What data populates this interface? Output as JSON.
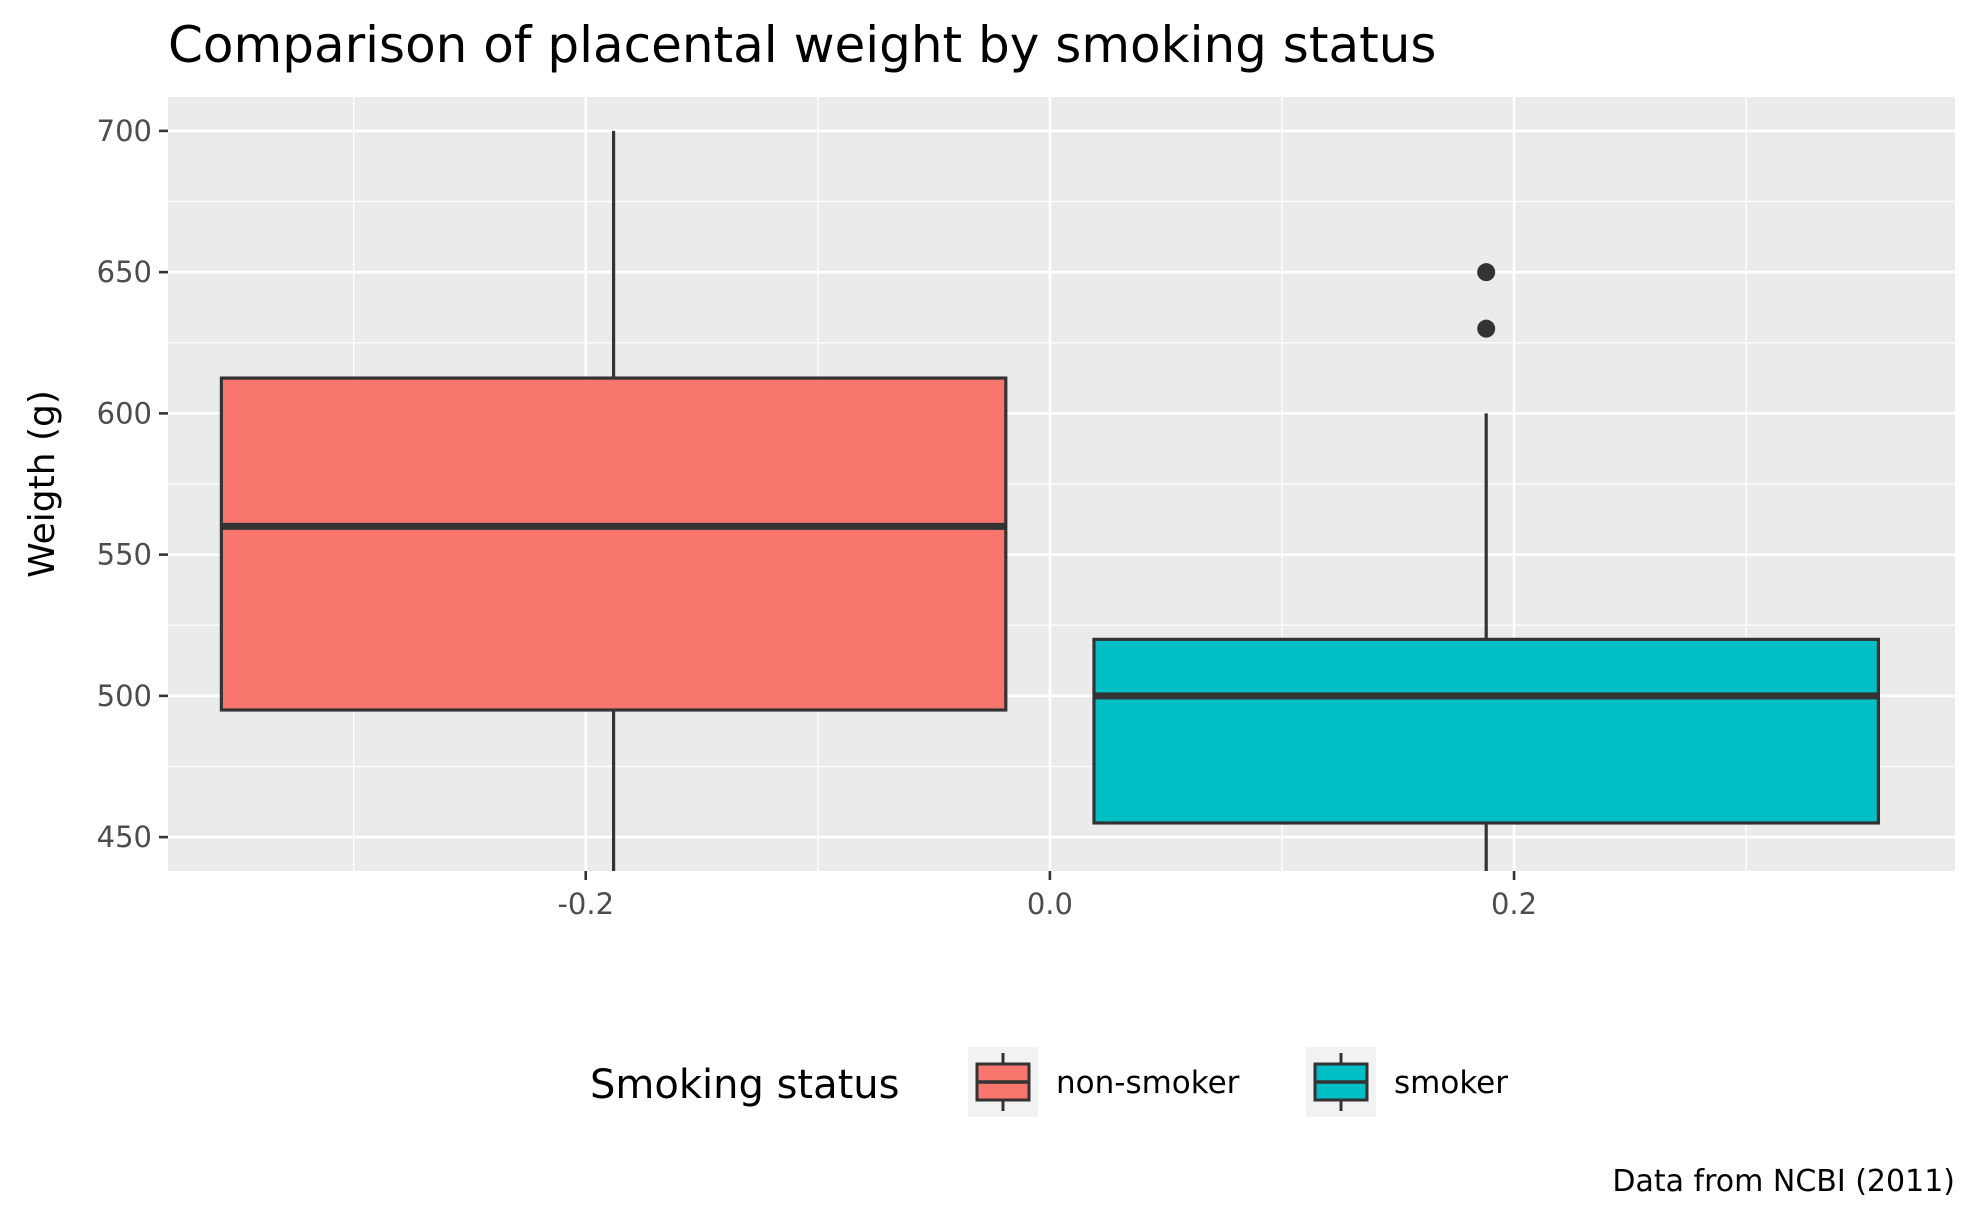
{
  "chart_data": {
    "type": "boxplot",
    "title": "Comparison of placental weight by smoking status",
    "xlabel": "",
    "ylabel": "Weigth (g)",
    "caption": "Data from NCBI (2011)",
    "xlim": [
      -0.38,
      0.39
    ],
    "ylim": [
      438,
      712
    ],
    "x_ticks": [
      -0.2,
      0.0,
      0.2
    ],
    "x_tick_labels": [
      "-0.2",
      "0.0",
      "0.2"
    ],
    "y_ticks": [
      450,
      500,
      550,
      600,
      650,
      700
    ],
    "y_tick_labels": [
      "450",
      "500",
      "550",
      "600",
      "650",
      "700"
    ],
    "grid": true,
    "legend": {
      "title": "Smoking status",
      "position": "bottom"
    },
    "series": [
      {
        "name": "non-smoker",
        "color": "#F8766D",
        "x_center": -0.188,
        "box_x_range": [
          -0.357,
          -0.019
        ],
        "whisker_low": 438,
        "q1": 495,
        "median": 560,
        "q3": 612.5,
        "whisker_high": 700,
        "outliers": []
      },
      {
        "name": "smoker",
        "color": "#00BFC4",
        "x_center": 0.188,
        "box_x_range": [
          0.019,
          0.357
        ],
        "whisker_low": 438,
        "q1": 455,
        "median": 500,
        "q3": 520,
        "whisker_high": 600,
        "outliers": [
          630,
          650
        ]
      }
    ]
  }
}
